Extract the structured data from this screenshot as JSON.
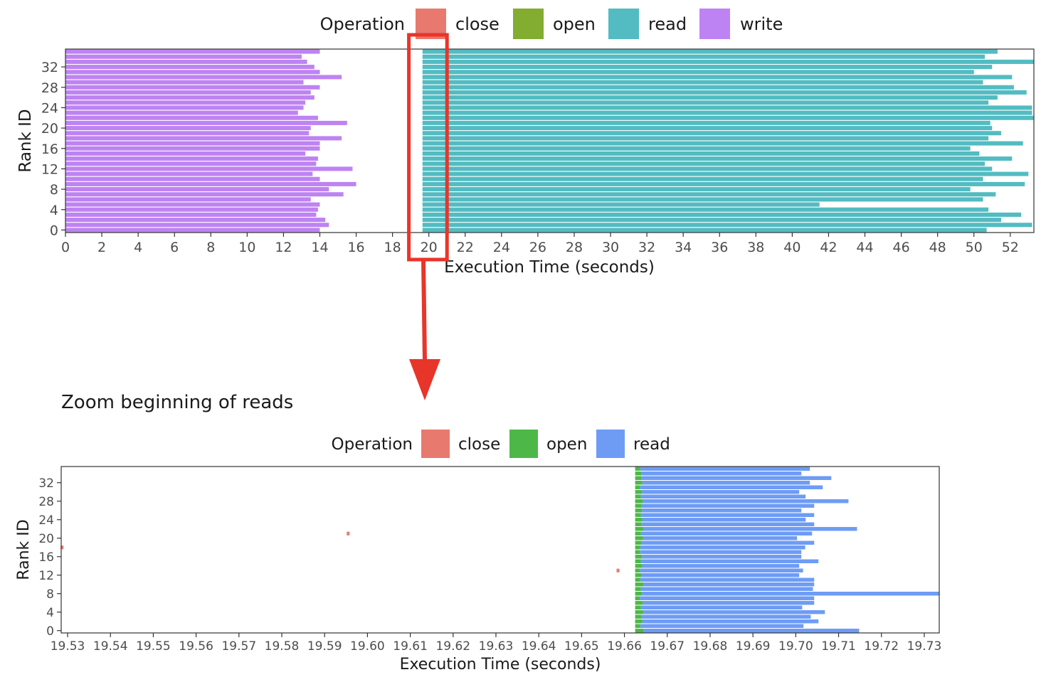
{
  "chart_data": [
    {
      "type": "gantt",
      "title": "",
      "xlabel": "Execution Time (seconds)",
      "ylabel": "Rank ID",
      "xlim": [
        0,
        53.3
      ],
      "ylim": [
        -0.5,
        35.5
      ],
      "x_ticks": [
        0,
        2,
        4,
        6,
        8,
        10,
        12,
        14,
        16,
        18,
        20,
        22,
        24,
        26,
        28,
        30,
        32,
        34,
        36,
        38,
        40,
        42,
        44,
        46,
        48,
        50,
        52
      ],
      "y_ticks": [
        0,
        4,
        8,
        12,
        16,
        20,
        24,
        28,
        32
      ],
      "legend": {
        "title": "Operation",
        "position": "top",
        "entries": [
          {
            "label": "close",
            "color": "#e8796f"
          },
          {
            "label": "open",
            "color": "#82ad31"
          },
          {
            "label": "read",
            "color": "#52bcc2"
          },
          {
            "label": "write",
            "color": "#be83f2"
          }
        ]
      },
      "grid": false,
      "series": [
        {
          "name": "write",
          "color": "#be83f2",
          "start": 0,
          "rank_end": [
            14.0,
            14.5,
            14.3,
            13.8,
            13.9,
            14.0,
            13.5,
            15.3,
            14.5,
            16.0,
            14.0,
            13.6,
            15.8,
            13.8,
            13.9,
            13.2,
            14.0,
            14.0,
            15.2,
            13.4,
            13.5,
            15.5,
            13.9,
            12.8,
            13.1,
            13.2,
            13.7,
            13.5,
            14.0,
            13.1,
            15.2,
            14.0,
            13.7,
            13.3,
            13.0,
            14.0
          ]
        },
        {
          "name": "read",
          "color": "#52bcc2",
          "start": 19.65,
          "rank_end": [
            50.7,
            53.2,
            51.5,
            52.6,
            50.8,
            41.5,
            50.5,
            51.2,
            49.8,
            52.8,
            50.5,
            53.0,
            51.0,
            50.6,
            52.1,
            50.3,
            49.8,
            52.7,
            50.8,
            51.5,
            51.0,
            50.9,
            53.3,
            53.2,
            53.2,
            50.8,
            51.3,
            52.9,
            52.2,
            50.5,
            52.1,
            50.0,
            51.0,
            53.3,
            50.6,
            51.3
          ]
        }
      ],
      "highlight_box_x": [
        18.9,
        21.0
      ],
      "arrow_label": ""
    },
    {
      "type": "gantt",
      "title": "Zoom beginning of reads",
      "xlabel": "Execution Time (seconds)",
      "ylabel": "Rank ID",
      "xlim": [
        19.5285,
        19.7335
      ],
      "ylim": [
        -0.5,
        35.5
      ],
      "x_ticks": [
        19.53,
        19.54,
        19.55,
        19.56,
        19.57,
        19.58,
        19.59,
        19.6,
        19.61,
        19.62,
        19.63,
        19.64,
        19.65,
        19.66,
        19.67,
        19.68,
        19.69,
        19.7,
        19.71,
        19.72,
        19.73
      ],
      "x_tick_labels": [
        "19.53",
        "19.54",
        "19.55",
        "19.56",
        "19.57",
        "19.58",
        "19.59",
        "19.60",
        "19.61",
        "19.62",
        "19.63",
        "19.64",
        "19.65",
        "19.66",
        "19.67",
        "19.68",
        "19.69",
        "19.70",
        "19.71",
        "19.72",
        "19.73"
      ],
      "y_ticks": [
        0,
        4,
        8,
        12,
        16,
        20,
        24,
        28,
        32
      ],
      "legend": {
        "title": "Operation",
        "position": "top",
        "entries": [
          {
            "label": "close",
            "color": "#e8796f"
          },
          {
            "label": "open",
            "color": "#4db848"
          },
          {
            "label": "read",
            "color": "#6e9cf5"
          }
        ]
      },
      "grid": false,
      "open_start": 19.6625,
      "open_end": [
        19.6645,
        19.6637,
        19.6642,
        19.664,
        19.6645,
        19.6638,
        19.6643,
        19.6636,
        19.6641,
        19.6638,
        19.6644,
        19.6637,
        19.664,
        19.6636,
        19.6642,
        19.6638,
        19.6641,
        19.6636,
        19.6637,
        19.6639,
        19.6643,
        19.6638,
        19.6645,
        19.664,
        19.6642,
        19.6638,
        19.6641,
        19.6639,
        19.6643,
        19.6638,
        19.6641,
        19.6636,
        19.6642,
        19.664,
        19.6639,
        19.6637
      ],
      "read_end": [
        19.7148,
        19.7018,
        19.7053,
        19.7035,
        19.7068,
        19.7015,
        19.7043,
        19.7043,
        19.7335,
        19.704,
        19.7043,
        19.7043,
        19.7008,
        19.7017,
        19.7008,
        19.7053,
        19.7013,
        19.7013,
        19.7022,
        19.7043,
        19.7003,
        19.7038,
        19.7143,
        19.7043,
        19.7023,
        19.7043,
        19.7013,
        19.7043,
        19.7123,
        19.7023,
        19.7008,
        19.7063,
        19.7033,
        19.7083,
        19.7013,
        19.7033
      ],
      "close_points": [
        {
          "x": 19.5287,
          "rank": 18
        },
        {
          "x": 19.5955,
          "rank": 21
        },
        {
          "x": 19.6585,
          "rank": 13
        }
      ]
    }
  ]
}
